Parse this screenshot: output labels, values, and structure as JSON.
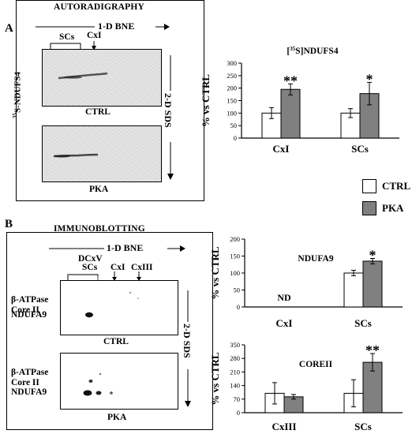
{
  "panel_a": {
    "letter": "A",
    "title": "AUTORADIGRAPHY",
    "direction_label": "1-D BNE",
    "sds_label": "2-D SDS",
    "probe_label": "NDUFS4",
    "probe_superscript": "35",
    "probe_prefix": "S-",
    "scs_label": "SCs",
    "cxi_label": "CxI",
    "ctrl_label": "CTRL",
    "pka_label": "PKA"
  },
  "panel_b": {
    "letter": "B",
    "title": "IMMUNOBLOTTING",
    "direction_label": "1-D BNE",
    "sds_label": "2-D SDS",
    "dcxv_label": "DCxV",
    "scs_label": "SCs",
    "cxi_label": "CxI",
    "cxiii_label": "CxIII",
    "rows_ctrl": [
      "β-ATPase",
      "Core II",
      "NDUFA9"
    ],
    "rows_pka": [
      "β-ATPase",
      "Core II",
      "NDUFA9"
    ],
    "ctrl_label": "CTRL",
    "pka_label": "PKA"
  },
  "legend": {
    "ctrl": "CTRL",
    "pka": "PKA",
    "colors": {
      "ctrl": "#ffffff",
      "pka": "#808080"
    }
  },
  "chart_data": [
    {
      "type": "bar",
      "title_prefix": "[",
      "title_superscript": "35",
      "title_rest": "S]NDUFS4",
      "ylabel": "% vs CTRL",
      "categories": [
        "CxI",
        "SCs"
      ],
      "ylim": [
        0,
        300
      ],
      "yticks": [
        "0",
        "50",
        "100",
        "150",
        "200",
        "250",
        "300"
      ],
      "series": [
        {
          "name": "CTRL",
          "values": [
            100,
            100
          ],
          "errors": [
            22,
            18
          ]
        },
        {
          "name": "PKA",
          "values": [
            195,
            178
          ],
          "errors": [
            22,
            45
          ]
        }
      ],
      "annotations": [
        {
          "category": 0,
          "text": "**"
        },
        {
          "category": 1,
          "text": "*"
        }
      ]
    },
    {
      "type": "bar",
      "title": "NDUFA9",
      "ylabel": "% vs CTRL",
      "categories": [
        "CxI",
        "SCs"
      ],
      "ylim": [
        0,
        200
      ],
      "yticks": [
        "0",
        "50",
        "100",
        "150",
        "200"
      ],
      "series": [
        {
          "name": "CTRL",
          "values": [
            null,
            100
          ],
          "errors": [
            null,
            8
          ]
        },
        {
          "name": "PKA",
          "values": [
            null,
            135
          ],
          "errors": [
            null,
            8
          ]
        }
      ],
      "category_notes": [
        "ND",
        ""
      ],
      "annotations": [
        {
          "category": 1,
          "text": "*"
        }
      ]
    },
    {
      "type": "bar",
      "title": "COREII",
      "ylabel": "% vs CTRL",
      "categories": [
        "CxIII",
        "SCs"
      ],
      "ylim": [
        0,
        350
      ],
      "yticks": [
        "0",
        "70",
        "140",
        "210",
        "280",
        "350"
      ],
      "series": [
        {
          "name": "CTRL",
          "values": [
            100,
            100
          ],
          "errors": [
            55,
            70
          ]
        },
        {
          "name": "PKA",
          "values": [
            82,
            260
          ],
          "errors": [
            12,
            45
          ]
        }
      ],
      "annotations": [
        {
          "category": 1,
          "text": "**"
        }
      ]
    }
  ]
}
